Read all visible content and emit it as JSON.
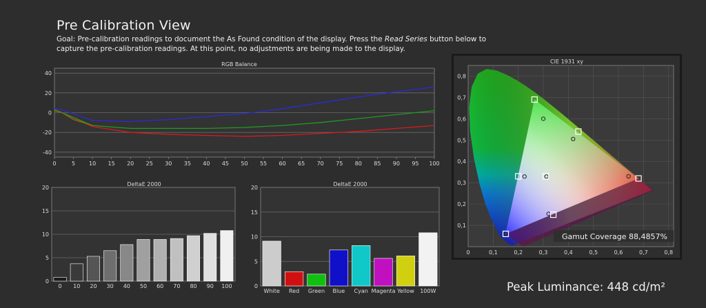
{
  "header": {
    "title": "Pre Calibration View",
    "goal_prefix": "Goal: Pre-calibration readings to document the As Found condition of the display. Press the ",
    "goal_button": "Read Series",
    "goal_suffix": " button below to capture the pre-calibration readings. At this point, no adjustments are being made to the display."
  },
  "peak_luminance": "Peak Luminance: 448 cd/m²",
  "colors": {
    "background": "#2d2d2d",
    "plot_bg": "#333333",
    "grid": "#6a6a6a",
    "red": "#e01818",
    "green": "#1f9c1f",
    "blue": "#2a2ae0"
  },
  "chart_data": [
    {
      "type": "line",
      "title": "RGB Balance",
      "xlim": [
        0,
        100
      ],
      "ylim": [
        -45,
        45
      ],
      "x_ticks": [
        0,
        5,
        10,
        15,
        20,
        25,
        30,
        35,
        40,
        45,
        50,
        55,
        60,
        65,
        70,
        75,
        80,
        85,
        90,
        95,
        100
      ],
      "y_ticks": [
        40,
        20,
        0,
        -20,
        -40
      ],
      "grid": true,
      "series": [
        {
          "color": "#e01818",
          "x": [
            0,
            2,
            10,
            20,
            30,
            40,
            50,
            60,
            70,
            80,
            90,
            100
          ],
          "y": [
            3,
            0,
            -14,
            -20,
            -22,
            -23,
            -24,
            -23,
            -21,
            -19,
            -16,
            -13
          ]
        },
        {
          "color": "#1f9c1f",
          "x": [
            0,
            2,
            10,
            20,
            30,
            40,
            50,
            60,
            70,
            80,
            90,
            100
          ],
          "y": [
            2,
            0,
            -13,
            -16,
            -16,
            -16,
            -15,
            -13,
            -10,
            -6,
            -2,
            2
          ]
        },
        {
          "color": "#2a2ae0",
          "x": [
            0,
            2,
            10,
            20,
            30,
            40,
            50,
            60,
            70,
            80,
            90,
            100
          ],
          "y": [
            4,
            3,
            -8,
            -9,
            -7,
            -4,
            -1,
            4,
            10,
            16,
            21,
            26
          ]
        },
        {
          "color": "#8a6a18",
          "x": [
            0,
            2,
            5,
            10
          ],
          "y": [
            3,
            0,
            -7,
            -13
          ]
        }
      ]
    },
    {
      "type": "bar",
      "title": "DeltaE 2000",
      "ylim": [
        0,
        20
      ],
      "y_ticks": [
        20,
        15,
        10,
        5,
        0
      ],
      "grid": true,
      "categories": [
        "0",
        "10",
        "20",
        "30",
        "40",
        "50",
        "60",
        "70",
        "80",
        "90",
        "100"
      ],
      "values": [
        0.8,
        3.7,
        5.3,
        6.5,
        7.8,
        8.9,
        8.9,
        9.1,
        9.7,
        10.2,
        10.8
      ],
      "bar_colors": [
        "#1a1a1a",
        "#3a3a3a",
        "#555555",
        "#6e6e6e",
        "#888888",
        "#a0a0a0",
        "#b0b0b0",
        "#c0c0c0",
        "#d0d0d0",
        "#e0e0e0",
        "#f0f0f0"
      ]
    },
    {
      "type": "bar",
      "title": "DeltaE 2000",
      "ylim": [
        0,
        20
      ],
      "y_ticks": [
        20,
        15,
        10,
        5,
        0
      ],
      "grid": true,
      "categories": [
        "White",
        "Red",
        "Green",
        "Blue",
        "Cyan",
        "Magenta",
        "Yellow",
        "100W"
      ],
      "values": [
        9.1,
        2.9,
        2.4,
        7.3,
        8.2,
        5.6,
        6.1,
        10.8
      ],
      "bar_colors": [
        "#cccccc",
        "#d01010",
        "#10c010",
        "#1010c8",
        "#10c8c8",
        "#c010c0",
        "#d0d010",
        "#f2f2f2"
      ]
    },
    {
      "type": "scatter",
      "title": "CIE 1931 xy",
      "xlim": [
        0,
        0.82
      ],
      "ylim": [
        0,
        0.85
      ],
      "x_ticks": [
        "0",
        "0,1",
        "0,2",
        "0,3",
        "0,4",
        "0,5",
        "0,6",
        "0,7",
        "0,8"
      ],
      "y_ticks": [
        "0,1",
        "0,2",
        "0,3",
        "0,4",
        "0,5",
        "0,6",
        "0,7",
        "0,8"
      ],
      "grid": true,
      "targets": [
        {
          "x": 0.64,
          "y": 0.33
        },
        {
          "x": 0.3,
          "y": 0.6
        },
        {
          "x": 0.15,
          "y": 0.06
        },
        {
          "x": 0.3127,
          "y": 0.329
        },
        {
          "x": 0.225,
          "y": 0.329
        },
        {
          "x": 0.321,
          "y": 0.154
        },
        {
          "x": 0.419,
          "y": 0.505
        }
      ],
      "measured": [
        {
          "x": 0.68,
          "y": 0.32
        },
        {
          "x": 0.265,
          "y": 0.69
        },
        {
          "x": 0.15,
          "y": 0.06
        },
        {
          "x": 0.31,
          "y": 0.33
        },
        {
          "x": 0.2,
          "y": 0.33
        },
        {
          "x": 0.34,
          "y": 0.15
        },
        {
          "x": 0.44,
          "y": 0.54
        }
      ],
      "gamut_coverage": "Gamut Coverage 88,4857%"
    }
  ]
}
